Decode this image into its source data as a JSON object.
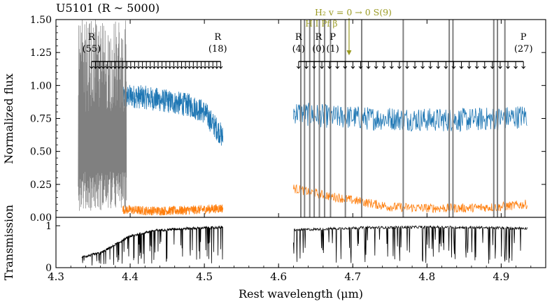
{
  "chart_data": [
    {
      "type": "line",
      "title": "U5101 (R ~ 5000)",
      "xlabel": "",
      "ylabel": "Normalized flux",
      "xlim": [
        4.3,
        4.96
      ],
      "ylim": [
        0.0,
        1.5
      ],
      "yticks": [
        "0.00",
        "0.25",
        "0.50",
        "0.75",
        "1.00",
        "1.25",
        "1.50"
      ],
      "ytick_values": [
        0.0,
        0.25,
        0.5,
        0.75,
        1.0,
        1.25,
        1.5
      ],
      "series": [
        {
          "name": "",
          "color": "#1f77b4",
          "segments": [
            {
              "x": [
                4.39,
                4.4,
                4.42,
                4.44,
                4.46,
                4.48,
                4.5,
                4.51,
                4.52,
                4.525
              ],
              "y": [
                0.9,
                0.92,
                0.91,
                0.89,
                0.87,
                0.85,
                0.8,
                0.72,
                0.65,
                0.6
              ]
            },
            {
              "x": [
                4.62,
                4.64,
                4.66,
                4.68,
                4.7,
                4.72,
                4.75,
                4.8,
                4.85,
                4.9,
                4.935
              ],
              "y": [
                0.8,
                0.78,
                0.77,
                0.76,
                0.76,
                0.75,
                0.75,
                0.74,
                0.74,
                0.75,
                0.77
              ]
            }
          ]
        },
        {
          "name": "",
          "color": "#ff7f0e",
          "segments": [
            {
              "x": [
                4.39,
                4.42,
                4.46,
                4.5,
                4.525
              ],
              "y": [
                0.06,
                0.05,
                0.05,
                0.06,
                0.07
              ]
            },
            {
              "x": [
                4.62,
                4.66,
                4.7,
                4.75,
                4.8,
                4.85,
                4.9,
                4.935
              ],
              "y": [
                0.22,
                0.17,
                0.13,
                0.08,
                0.07,
                0.07,
                0.08,
                0.1
              ]
            }
          ]
        },
        {
          "name": "",
          "color": "#808080",
          "segments": [
            {
              "x": [
                4.33,
                4.395
              ],
              "y": [
                0.0,
                1.5
              ]
            }
          ]
        }
      ],
      "line_markers": {
        "start": 4.348,
        "end": 4.522,
        "count": 34,
        "start2": 4.627,
        "end2": 4.93,
        "count2": 30,
        "labels": [
          {
            "x": 4.348,
            "branch": "R",
            "j": "(55)"
          },
          {
            "x": 4.518,
            "branch": "R",
            "j": "(18)"
          },
          {
            "x": 4.627,
            "branch": "R",
            "j": "(4)"
          },
          {
            "x": 4.654,
            "branch": "R",
            "j": "(0)"
          },
          {
            "x": 4.673,
            "branch": "P",
            "j": "(1)"
          },
          {
            "x": 4.93,
            "branch": "P",
            "j": "(27)"
          }
        ]
      },
      "annotations": [
        {
          "text": "H₂ v = 0 → 0 S(9)",
          "x": 4.695,
          "color": "#9a9a22"
        },
        {
          "text": "H I Pf β",
          "x": 4.654,
          "color": "#9a9a22"
        }
      ]
    },
    {
      "type": "line",
      "title": "",
      "xlabel": "Rest wavelength (μm)",
      "ylabel": "Transmission",
      "xlim": [
        4.3,
        4.96
      ],
      "ylim": [
        0,
        1.2
      ],
      "xticks": [
        "4.3",
        "4.4",
        "4.5",
        "4.6",
        "4.7",
        "4.8",
        "4.9"
      ],
      "xtick_values": [
        4.3,
        4.4,
        4.5,
        4.6,
        4.7,
        4.8,
        4.9
      ],
      "yticks": [
        "0",
        "1"
      ],
      "ytick_values": [
        0,
        1
      ],
      "series": [
        {
          "name": "",
          "color": "#000000",
          "segments": [
            {
              "x": [
                4.335,
                4.36,
                4.38,
                4.4,
                4.43,
                4.46,
                4.5,
                4.525
              ],
              "y": [
                0.25,
                0.35,
                0.55,
                0.75,
                0.88,
                0.92,
                0.95,
                0.96
              ]
            },
            {
              "x": [
                4.62,
                4.66,
                4.7,
                4.75,
                4.8,
                4.85,
                4.9,
                4.935
              ],
              "y": [
                0.9,
                0.92,
                0.95,
                0.96,
                0.97,
                0.96,
                0.95,
                0.94
              ]
            }
          ]
        }
      ]
    }
  ]
}
